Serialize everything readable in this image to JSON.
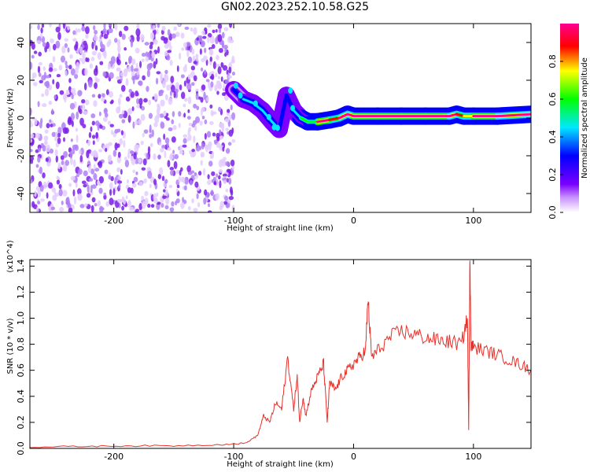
{
  "title": "GN02.2023.252.10.58.G25",
  "colors": {
    "snr_line": "#e8302a",
    "noise_dots": "#7b1fe6",
    "axes": "#000000"
  },
  "chart_data": [
    {
      "type": "heatmap",
      "xlabel": "Height of straight line (km)",
      "ylabel": "Frequency (Hz)",
      "xlim": [
        -270,
        148
      ],
      "ylim": [
        -50,
        50
      ],
      "x_ticks": [
        -200,
        -100,
        0,
        100
      ],
      "y_ticks": [
        40,
        20,
        0,
        -20,
        -40
      ],
      "colorbar": {
        "label": "Normalized spectral amplitude",
        "range": [
          0,
          1
        ],
        "ticks": [
          "0.0",
          "0.2",
          "0.4",
          "0.6",
          "0.8"
        ],
        "colormap": "rainbow (white-violet-blue-cyan-green-yellow-red-magenta)"
      },
      "signal_track": {
        "x": [
          -100,
          -92,
          -84,
          -76,
          -68,
          -62,
          -56,
          -50,
          -44,
          -38,
          -30,
          -20,
          -12,
          -5,
          0,
          20,
          40,
          60,
          80,
          86,
          92,
          100,
          120,
          148
        ],
        "frequency": [
          15,
          10,
          8,
          4,
          -2,
          -6,
          12,
          4,
          0,
          -2,
          -2,
          -1,
          0,
          2,
          1,
          1,
          1,
          1,
          1,
          2,
          1,
          1,
          1,
          2
        ],
        "amplitude": [
          0.25,
          0.35,
          0.35,
          0.4,
          0.4,
          0.3,
          0.3,
          0.35,
          0.5,
          0.6,
          0.95,
          0.8,
          0.9,
          0.9,
          0.95,
          1.0,
          1.0,
          0.95,
          0.9,
          0.8,
          0.7,
          0.95,
          0.9,
          0.6
        ]
      },
      "noise_region_x": [
        -270,
        -100
      ]
    },
    {
      "type": "line",
      "xlabel": "Height of straight line (km)",
      "ylabel": "SNR (10 * v/v)",
      "y_multiplier": "(x10^4)",
      "xlim": [
        -270,
        148
      ],
      "ylim": [
        0,
        1.45
      ],
      "x_ticks": [
        -200,
        -100,
        0,
        100
      ],
      "y_ticks": [
        "0.0",
        "0.2",
        "0.4",
        "0.6",
        "0.8",
        "1.0",
        "1.2",
        "1.4"
      ],
      "series": [
        {
          "x": [
            -270,
            -230,
            -190,
            -150,
            -110,
            -90,
            -80,
            -75,
            -70,
            -65,
            -60,
            -55,
            -50,
            -47,
            -45,
            -42,
            -40,
            -35,
            -30,
            -25,
            -22,
            -20,
            -15,
            -10,
            -5,
            0,
            5,
            10,
            12,
            15,
            20,
            30,
            40,
            50,
            60,
            70,
            80,
            90,
            95,
            96,
            97,
            98,
            100,
            110,
            120,
            130,
            140,
            148
          ],
          "y": [
            0.01,
            0.015,
            0.02,
            0.02,
            0.03,
            0.04,
            0.1,
            0.25,
            0.2,
            0.35,
            0.3,
            0.7,
            0.3,
            0.55,
            0.2,
            0.4,
            0.25,
            0.45,
            0.55,
            0.65,
            0.2,
            0.5,
            0.45,
            0.55,
            0.6,
            0.65,
            0.7,
            0.75,
            1.15,
            0.7,
            0.75,
            0.85,
            0.9,
            0.88,
            0.85,
            0.83,
            0.82,
            0.8,
            1.0,
            0.15,
            1.45,
            0.8,
            0.78,
            0.75,
            0.72,
            0.68,
            0.64,
            0.6
          ]
        }
      ]
    }
  ]
}
